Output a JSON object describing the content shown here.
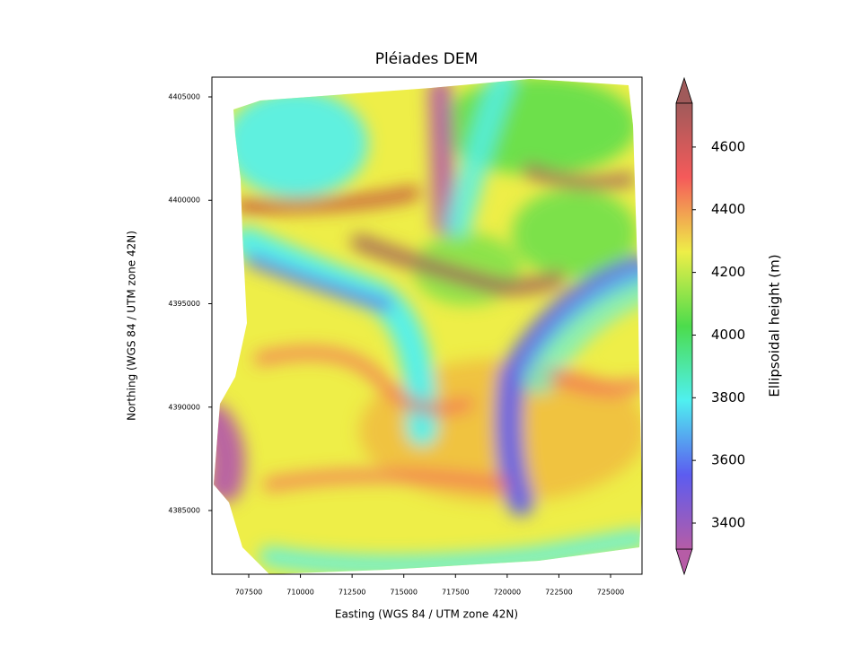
{
  "chart_data": {
    "type": "image",
    "title": "Pléiades DEM",
    "xlabel": "Easting (WGS 84 / UTM zone 42N)",
    "ylabel": "Northing (WGS 84 / UTM zone 42N)",
    "xlim": [
      705720,
      726520
    ],
    "xticks": [
      707500,
      710000,
      712500,
      715000,
      717500,
      720000,
      722500,
      725000
    ],
    "ylim": [
      4381920,
      4405954
    ],
    "yticks": [
      4385000,
      4390000,
      4395000,
      4400000,
      4405000
    ],
    "colorbar_label": "Ellipsoidal height (m)",
    "clim": [
      3317,
      4740
    ],
    "cticks": [
      3400,
      3600,
      3800,
      4000,
      4200,
      4400,
      4600
    ],
    "colormap": [
      "#b65ca6",
      "#5c5cf0",
      "#4ff0f0",
      "#4cdc4c",
      "#eeee48",
      "#f55a5a",
      "#a05a5a"
    ]
  }
}
